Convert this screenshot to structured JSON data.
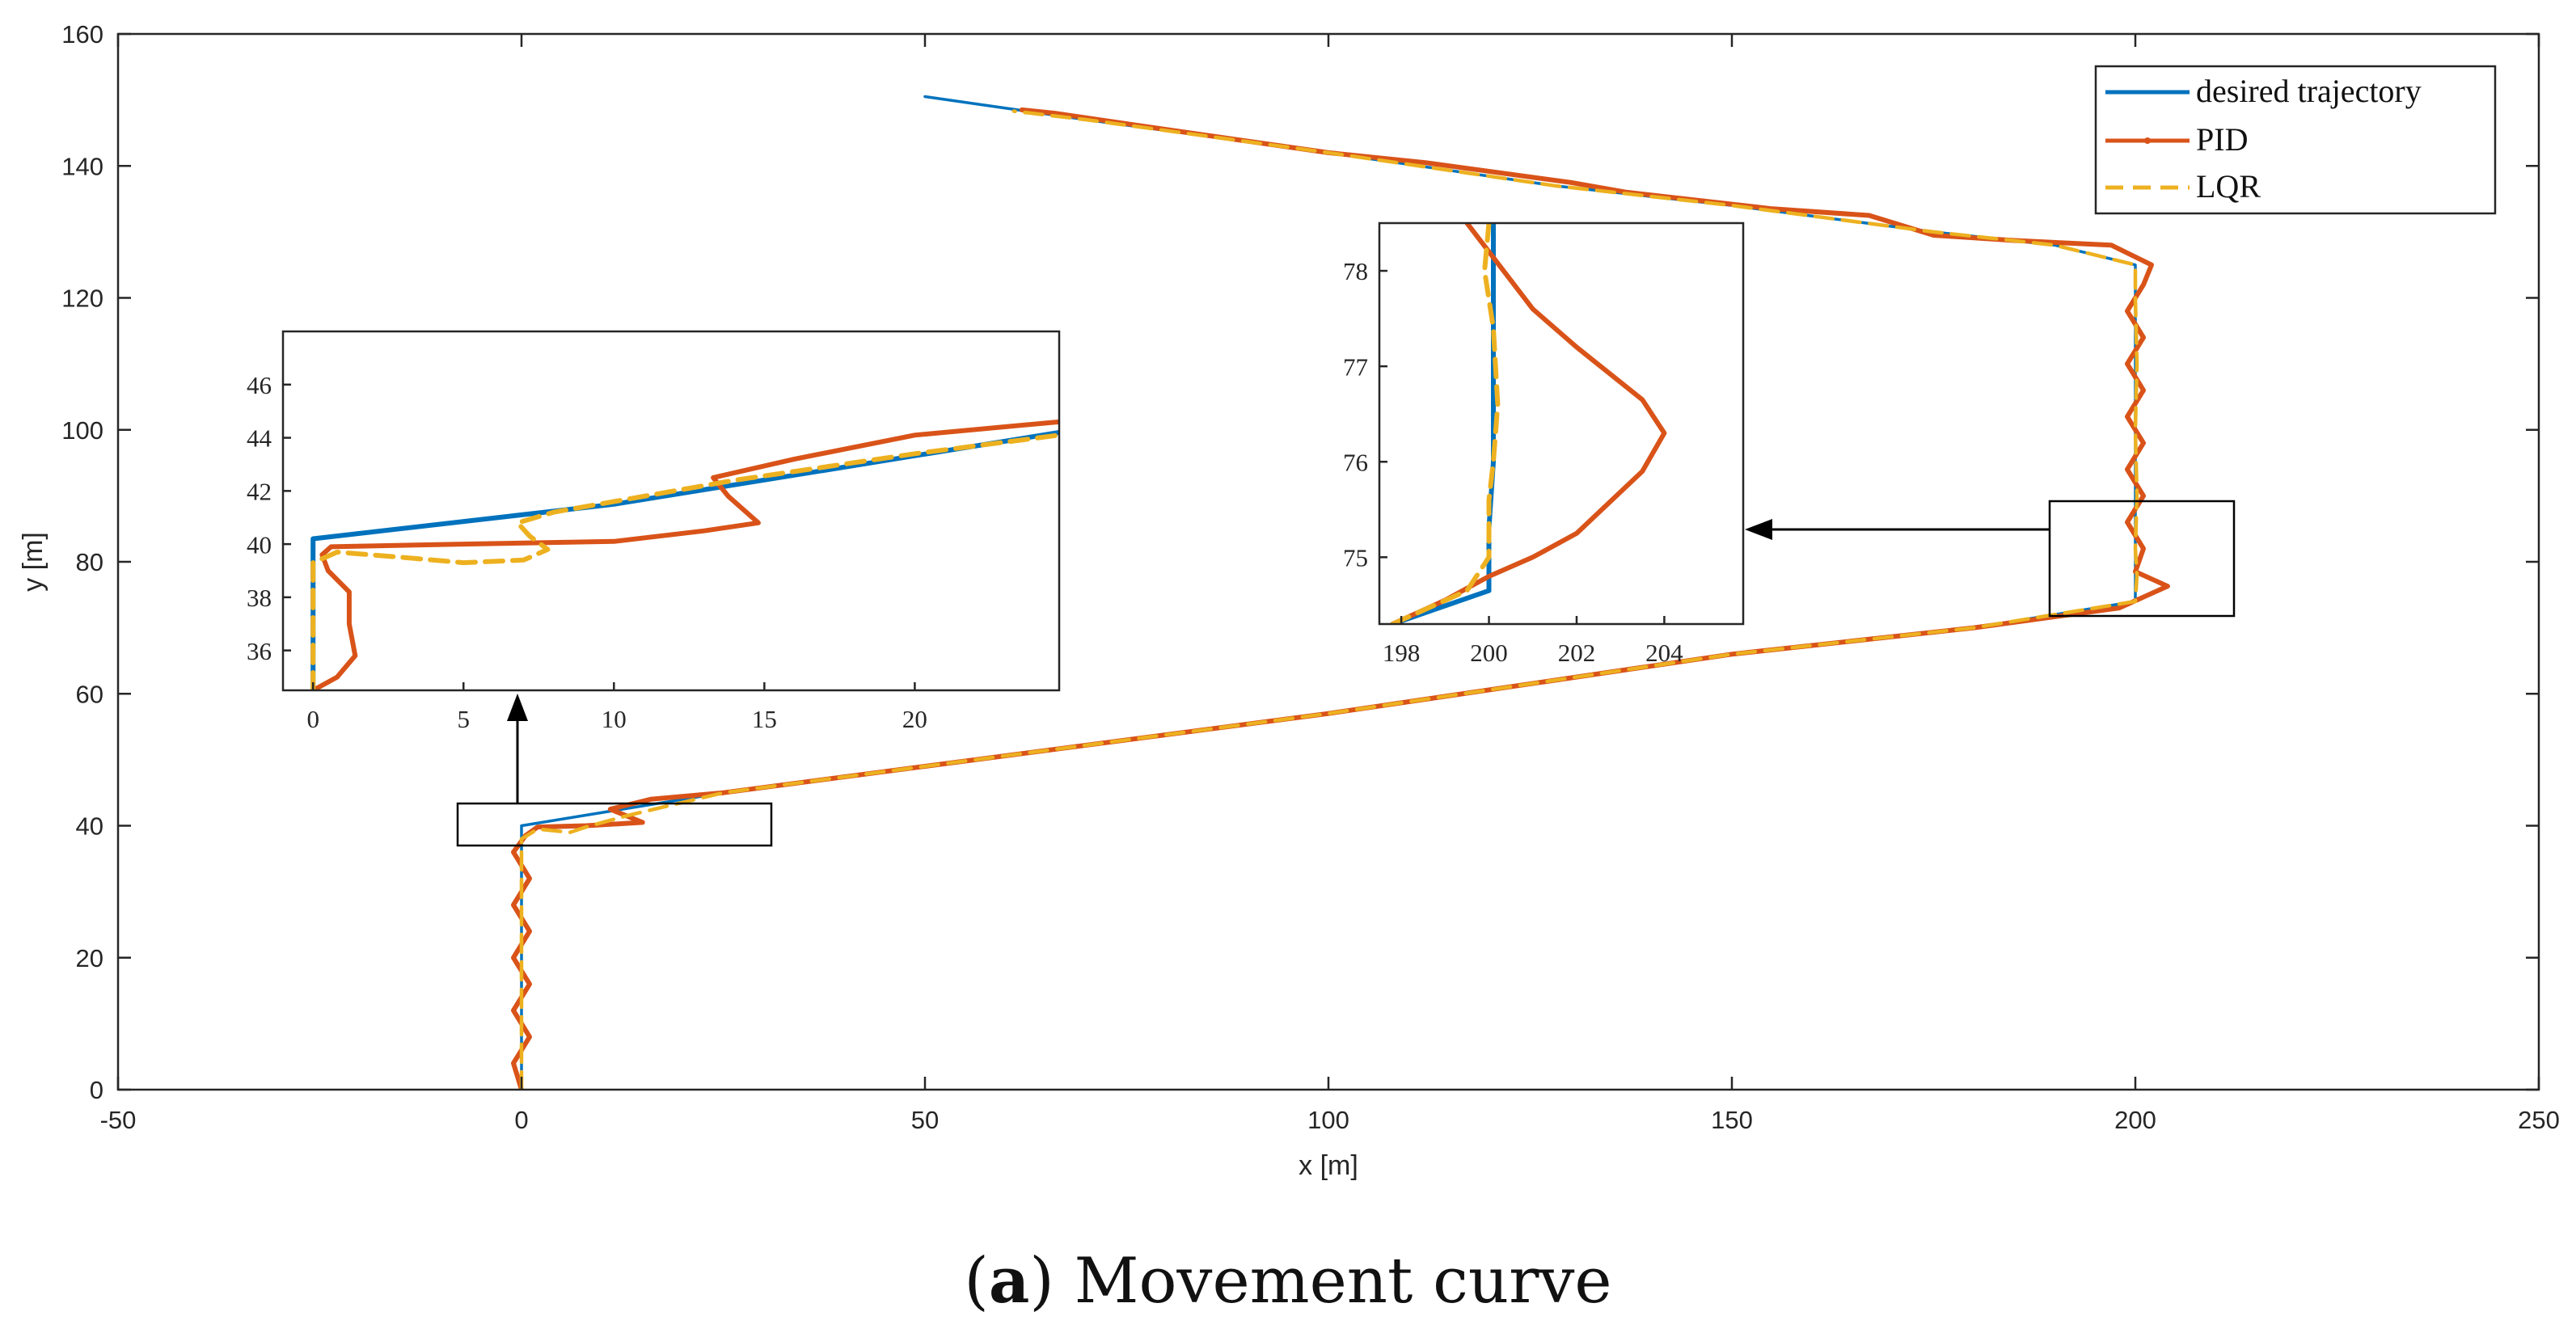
{
  "colors": {
    "desired": "#0072BD",
    "pid": "#D95319",
    "lqr": "#EDB120",
    "axis": "#262626"
  },
  "caption": {
    "prefix_open": "(",
    "label": "a",
    "prefix_close": ")",
    "title": "Movement curve"
  },
  "chart_data": [
    {
      "type": "line",
      "id": "main",
      "xlabel": "x [m]",
      "ylabel": "y [m]",
      "xlim": [
        -50,
        250
      ],
      "ylim": [
        0,
        160
      ],
      "xticks": [
        -50,
        0,
        50,
        100,
        150,
        200,
        250
      ],
      "yticks": [
        0,
        20,
        40,
        60,
        80,
        100,
        120,
        140,
        160
      ],
      "legend": {
        "placement": "top-right",
        "entries": [
          "desired trajectory",
          "PID",
          "LQR"
        ]
      },
      "series": [
        {
          "name": "desired trajectory",
          "points": [
            [
              0,
              0
            ],
            [
              0,
              40
            ],
            [
              25,
              45
            ],
            [
              50,
              49
            ],
            [
              100,
              57
            ],
            [
              150,
              66
            ],
            [
              180,
              70
            ],
            [
              200,
              74
            ],
            [
              200,
              125
            ],
            [
              190,
              128
            ],
            [
              175,
              130
            ],
            [
              150,
              134
            ],
            [
              128,
              137
            ],
            [
              100,
              142
            ],
            [
              70,
              147
            ],
            [
              50,
              150.5
            ]
          ]
        },
        {
          "name": "PID",
          "points": [
            [
              0,
              0
            ],
            [
              -1,
              4
            ],
            [
              1,
              8
            ],
            [
              -1,
              12
            ],
            [
              1,
              16
            ],
            [
              -1,
              20
            ],
            [
              1,
              24
            ],
            [
              -1,
              28
            ],
            [
              1,
              32
            ],
            [
              -1,
              36
            ],
            [
              0.5,
              38.5
            ],
            [
              2,
              39.8
            ],
            [
              8,
              40
            ],
            [
              15,
              40.5
            ],
            [
              11,
              42.5
            ],
            [
              16,
              44
            ],
            [
              25,
              45
            ],
            [
              50,
              49
            ],
            [
              100,
              57
            ],
            [
              150,
              66
            ],
            [
              180,
              70
            ],
            [
              198,
              73
            ],
            [
              204,
              76.3
            ],
            [
              200,
              78.5
            ],
            [
              201,
              82
            ],
            [
              199,
              86
            ],
            [
              201,
              90
            ],
            [
              199,
              94
            ],
            [
              201,
              98
            ],
            [
              199,
              102
            ],
            [
              201,
              106
            ],
            [
              199,
              110
            ],
            [
              201,
              114
            ],
            [
              199,
              118
            ],
            [
              201,
              122
            ],
            [
              202,
              125
            ],
            [
              197,
              128
            ],
            [
              185,
              128.7
            ],
            [
              175,
              129.5
            ],
            [
              167,
              132.5
            ],
            [
              155,
              133.5
            ],
            [
              137,
              136
            ],
            [
              130,
              137.5
            ],
            [
              112,
              140.5
            ],
            [
              100,
              142
            ],
            [
              80,
              145.5
            ],
            [
              66,
              148
            ],
            [
              62,
              148.5
            ]
          ]
        },
        {
          "name": "LQR",
          "points": [
            [
              0,
              0
            ],
            [
              0,
              38
            ],
            [
              2,
              39.5
            ],
            [
              6,
              39
            ],
            [
              8,
              39.8
            ],
            [
              13,
              41.5
            ],
            [
              25,
              45
            ],
            [
              50,
              49
            ],
            [
              100,
              57
            ],
            [
              150,
              66
            ],
            [
              180,
              70
            ],
            [
              200,
              74
            ],
            [
              200.2,
              78
            ],
            [
              200,
              82
            ],
            [
              200.2,
              90
            ],
            [
              200,
              100
            ],
            [
              200.2,
              110
            ],
            [
              200,
              120
            ],
            [
              200,
              125
            ],
            [
              190,
              128
            ],
            [
              175,
              130
            ],
            [
              150,
              134
            ],
            [
              128,
              137
            ],
            [
              100,
              142
            ],
            [
              70,
              147
            ],
            [
              61,
              148.3
            ]
          ]
        }
      ]
    },
    {
      "type": "line",
      "id": "inset-left",
      "xlim": [
        -1,
        24.8
      ],
      "ylim": [
        34.5,
        48
      ],
      "xticks": [
        0,
        5,
        10,
        15,
        20
      ],
      "yticks": [
        36,
        38,
        40,
        42,
        44,
        46
      ],
      "series": [
        {
          "name": "desired trajectory",
          "points": [
            [
              0,
              34.5
            ],
            [
              0,
              40.2
            ],
            [
              10,
              41.5
            ],
            [
              24.8,
              44.2
            ]
          ]
        },
        {
          "name": "PID",
          "points": [
            [
              0,
              34.5
            ],
            [
              0.8,
              35
            ],
            [
              1.4,
              35.8
            ],
            [
              1.2,
              37
            ],
            [
              1.2,
              38.2
            ],
            [
              0.5,
              39
            ],
            [
              0.3,
              39.6
            ],
            [
              0.6,
              39.9
            ],
            [
              5,
              40
            ],
            [
              10,
              40.1
            ],
            [
              13,
              40.5
            ],
            [
              14.8,
              40.8
            ],
            [
              13.8,
              41.8
            ],
            [
              13.3,
              42.5
            ],
            [
              16,
              43.2
            ],
            [
              20,
              44.1
            ],
            [
              24.8,
              44.6
            ]
          ]
        },
        {
          "name": "LQR",
          "points": [
            [
              0,
              34.5
            ],
            [
              0,
              38
            ],
            [
              0,
              39.3
            ],
            [
              0.8,
              39.7
            ],
            [
              3,
              39.5
            ],
            [
              5,
              39.3
            ],
            [
              7,
              39.4
            ],
            [
              7.8,
              39.8
            ],
            [
              7.2,
              40.3
            ],
            [
              6.8,
              40.8
            ],
            [
              8,
              41.2
            ],
            [
              10,
              41.6
            ],
            [
              14,
              42.4
            ],
            [
              20,
              43.4
            ],
            [
              24.8,
              44.1
            ]
          ]
        }
      ]
    },
    {
      "type": "line",
      "id": "inset-right",
      "xlim": [
        197.5,
        205.8
      ],
      "ylim": [
        74.3,
        78.5
      ],
      "xticks": [
        198,
        200,
        202,
        204
      ],
      "yticks": [
        75,
        76,
        77,
        78
      ],
      "series": [
        {
          "name": "desired trajectory",
          "points": [
            [
              197.8,
              74.3
            ],
            [
              200,
              74.65
            ],
            [
              200,
              75.3
            ],
            [
              200.1,
              76
            ],
            [
              200.1,
              78.5
            ]
          ]
        },
        {
          "name": "PID",
          "points": [
            [
              197.8,
              74.3
            ],
            [
              199,
              74.55
            ],
            [
              200,
              74.8
            ],
            [
              201,
              75
            ],
            [
              202,
              75.25
            ],
            [
              203.5,
              75.9
            ],
            [
              204,
              76.3
            ],
            [
              203.5,
              76.65
            ],
            [
              202,
              77.2
            ],
            [
              201,
              77.6
            ],
            [
              199.5,
              78.5
            ]
          ]
        },
        {
          "name": "LQR",
          "points": [
            [
              197.8,
              74.3
            ],
            [
              199.5,
              74.65
            ],
            [
              200,
              75
            ],
            [
              200,
              75.6
            ],
            [
              200.1,
              76
            ],
            [
              200.2,
              76.6
            ],
            [
              200.1,
              77.4
            ],
            [
              199.9,
              78
            ],
            [
              200,
              78.5
            ]
          ]
        }
      ]
    }
  ]
}
